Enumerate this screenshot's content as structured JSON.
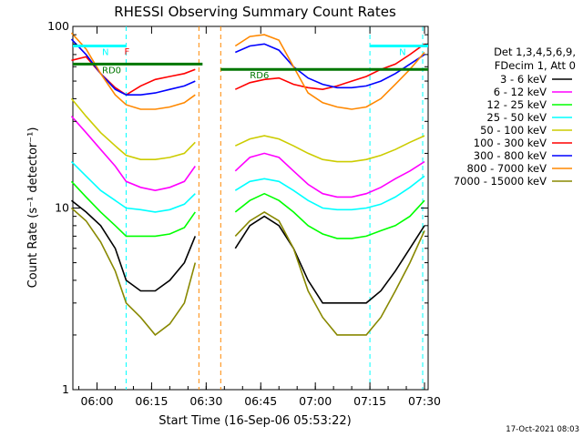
{
  "chart_data": {
    "type": "line",
    "title": "RHESSI Observing Summary Count Rates",
    "xlabel": "Start Time (16-Sep-06 05:53:22)",
    "ylabel": "Count Rate (s⁻¹ detector⁻¹)",
    "y_scale": "log",
    "ylim": [
      1,
      100
    ],
    "xlim": [
      "05:53:22",
      "07:31:00"
    ],
    "x_ticks": [
      "06:00",
      "06:15",
      "06:30",
      "06:45",
      "07:00",
      "07:15",
      "07:30"
    ],
    "y_ticks": [
      "1",
      "10",
      "100"
    ],
    "legend_header": [
      "Det 1,3,4,5,6,9,",
      "FDecim 1, Att 0"
    ],
    "legend_position": "right",
    "footer_date": "17-Oct-2021 08:03",
    "annotations": [
      {
        "label": "N",
        "color": "#00ffff",
        "x_start": "05:53:22",
        "x_end": "06:08:00",
        "y": 78
      },
      {
        "label": "N",
        "color": "#00ffff",
        "x_start": "07:15:00",
        "x_end": "07:31:00",
        "y": 78
      },
      {
        "label": "F",
        "color": "#ff0000",
        "x": "06:07:30",
        "y": 70
      },
      {
        "label": "RD0",
        "color": "#007700",
        "x_start": "05:53:22",
        "x_end": "06:29:00",
        "y": 62
      },
      {
        "label": "RD6",
        "color": "#007700",
        "x_start": "06:34:00",
        "x_end": "07:31:00",
        "y": 58
      }
    ],
    "x_points": [
      "05:53",
      "05:57",
      "06:01",
      "06:05",
      "06:08",
      "06:12",
      "06:16",
      "06:20",
      "06:24",
      "06:27",
      "06:38",
      "06:42",
      "06:46",
      "06:50",
      "06:54",
      "06:58",
      "07:02",
      "07:06",
      "07:10",
      "07:14",
      "07:18",
      "07:22",
      "07:26",
      "07:30"
    ],
    "series": [
      {
        "name": "3 - 6 keV",
        "color": "#000000",
        "values": [
          11,
          9.5,
          8,
          6,
          4,
          3.5,
          3.5,
          4,
          5,
          7,
          6,
          8,
          9,
          8,
          6,
          4,
          3,
          3,
          3,
          3,
          3.5,
          4.5,
          6,
          8
        ]
      },
      {
        "name": "6 - 12 keV",
        "color": "#ff00ff",
        "values": [
          32,
          26,
          21,
          17,
          14,
          13,
          12.5,
          13,
          14,
          17,
          16,
          19,
          20,
          19,
          16,
          13.5,
          12,
          11.5,
          11.5,
          12,
          13,
          14.5,
          16,
          18
        ]
      },
      {
        "name": "12 - 25 keV",
        "color": "#00ff00",
        "values": [
          14,
          11.5,
          9.5,
          8,
          7,
          7,
          7,
          7.2,
          7.8,
          9.5,
          9.5,
          11,
          12,
          11,
          9.5,
          8,
          7.2,
          6.8,
          6.8,
          7,
          7.5,
          8,
          9,
          11
        ]
      },
      {
        "name": "25 - 50 keV",
        "color": "#00ffff",
        "values": [
          18,
          15,
          12.5,
          11,
          10,
          9.8,
          9.5,
          9.8,
          10.5,
          12,
          12.5,
          14,
          14.5,
          14,
          12.5,
          11,
          10,
          9.8,
          9.8,
          10,
          10.5,
          11.5,
          13,
          15
        ]
      },
      {
        "name": "50 - 100 keV",
        "color": "#cccc00",
        "values": [
          40,
          32,
          26,
          22,
          19.5,
          18.5,
          18.5,
          19,
          20,
          23,
          22,
          24,
          25,
          24,
          22,
          20,
          18.5,
          18,
          18,
          18.5,
          19.5,
          21,
          23,
          25
        ]
      },
      {
        "name": "100 - 300 keV",
        "color": "#ff0000",
        "values": [
          65,
          68,
          55,
          46,
          42,
          47,
          51,
          53,
          55,
          58,
          45,
          49,
          51,
          52,
          48,
          46,
          45,
          47,
          50,
          53,
          58,
          62,
          70,
          80
        ]
      },
      {
        "name": "300 - 800 keV",
        "color": "#0000ff",
        "values": [
          85,
          70,
          55,
          45,
          42,
          42,
          43,
          45,
          47,
          50,
          72,
          78,
          80,
          74,
          60,
          52,
          48,
          46,
          46,
          47,
          50,
          55,
          62,
          70
        ]
      },
      {
        "name": "800 - 7000 keV",
        "color": "#ff8800",
        "values": [
          92,
          75,
          55,
          42,
          37,
          35,
          35,
          36,
          38,
          42,
          78,
          88,
          90,
          84,
          60,
          43,
          38,
          36,
          35,
          36,
          40,
          48,
          58,
          72
        ]
      },
      {
        "name": "7000 - 15000 keV",
        "color": "#888800",
        "values": [
          10,
          8.5,
          6.5,
          4.5,
          3,
          2.5,
          2,
          2.3,
          3,
          5,
          7,
          8.5,
          9.5,
          8.5,
          6,
          3.5,
          2.5,
          2,
          2,
          2,
          2.5,
          3.5,
          5,
          7.5
        ]
      }
    ]
  }
}
